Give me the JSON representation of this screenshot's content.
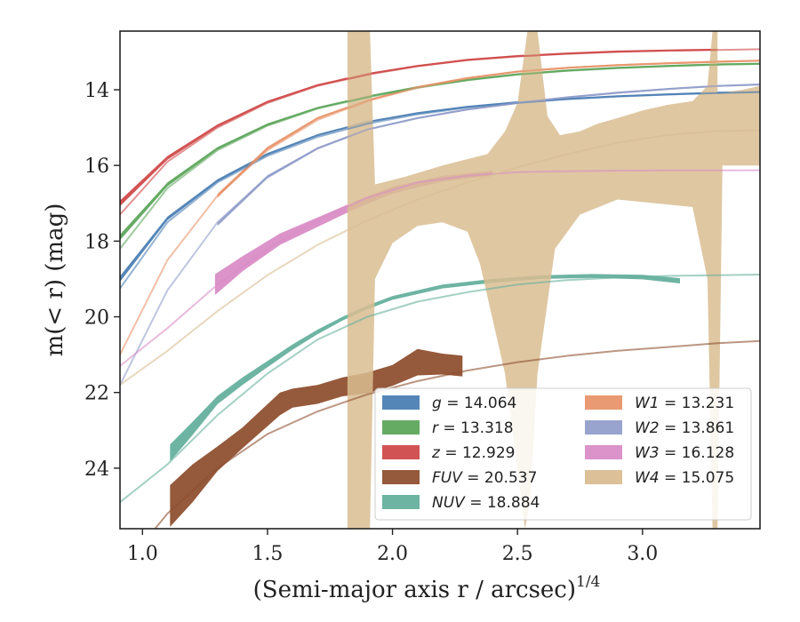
{
  "chart_data": {
    "type": "area",
    "xlabel": "(Semi-major axis r / arcsec)",
    "xlabel_sup": "1/4",
    "ylabel": "m(< r) (mag)",
    "xlim": [
      0.91,
      3.47
    ],
    "ylim": [
      25.6,
      12.45
    ],
    "y_inverted": true,
    "grid": false,
    "legend_placement": "lower-right",
    "xticks": [
      1.0,
      1.5,
      2.0,
      2.5,
      3.0
    ],
    "xtick_labels": [
      "1.0",
      "1.5",
      "2.0",
      "2.5",
      "3.0"
    ],
    "yticks": [
      14,
      16,
      18,
      20,
      22,
      24
    ],
    "ytick_labels": [
      "14",
      "16",
      "18",
      "20",
      "22",
      "24"
    ],
    "series": [
      {
        "key": "g",
        "name": "g",
        "value_label": "= 14.064",
        "color": "#4c7fb4",
        "model": {
          "x": [
            0.91,
            1.1,
            1.3,
            1.5,
            1.7,
            1.9,
            2.1,
            2.3,
            2.5,
            2.7,
            2.9,
            3.1,
            3.3,
            3.47
          ],
          "y": [
            19.25,
            17.5,
            16.45,
            15.75,
            15.25,
            14.9,
            14.65,
            14.47,
            14.35,
            14.25,
            14.18,
            14.13,
            14.09,
            14.064
          ]
        },
        "band": {
          "x": [
            0.91,
            1.1,
            1.3,
            1.5,
            1.7,
            1.9,
            2.1,
            2.3,
            2.5,
            2.7,
            2.9,
            3.1,
            3.3,
            3.47
          ],
          "y": [
            19.0,
            17.4,
            16.4,
            15.7,
            15.2,
            14.85,
            14.62,
            14.45,
            14.33,
            14.24,
            14.17,
            14.12,
            14.08,
            14.05
          ],
          "width": [
            0.15,
            0.1,
            0.07,
            0.06,
            0.05,
            0.05,
            0.05,
            0.05,
            0.05,
            0.05,
            0.05,
            0.05,
            0.05,
            0.05
          ]
        }
      },
      {
        "key": "r",
        "name": "r",
        "value_label": "= 13.318",
        "color": "#5ea65c",
        "model": {
          "x": [
            0.91,
            1.1,
            1.3,
            1.5,
            1.7,
            1.9,
            2.1,
            2.3,
            2.5,
            2.7,
            2.9,
            3.1,
            3.3,
            3.47
          ],
          "y": [
            18.2,
            16.6,
            15.6,
            14.95,
            14.5,
            14.2,
            13.95,
            13.75,
            13.6,
            13.5,
            13.43,
            13.38,
            13.34,
            13.318
          ]
        },
        "band": {
          "x": [
            0.91,
            1.1,
            1.3,
            1.5,
            1.7,
            1.9,
            2.1,
            2.3,
            2.5,
            2.7,
            2.9,
            3.1,
            3.3,
            3.47
          ],
          "y": [
            17.9,
            16.5,
            15.55,
            14.92,
            14.48,
            14.18,
            13.93,
            13.74,
            13.59,
            13.49,
            13.42,
            13.37,
            13.33,
            13.31
          ],
          "width": [
            0.15,
            0.1,
            0.07,
            0.06,
            0.05,
            0.05,
            0.05,
            0.05,
            0.05,
            0.05,
            0.05,
            0.05,
            0.05,
            0.05
          ]
        }
      },
      {
        "key": "z",
        "name": "z",
        "value_label": "= 12.929",
        "color": "#d04a4a",
        "model": {
          "x": [
            0.91,
            1.1,
            1.3,
            1.5,
            1.7,
            1.9,
            2.1,
            2.3,
            2.5,
            2.7,
            2.9,
            3.1,
            3.3,
            3.47
          ],
          "y": [
            17.3,
            15.9,
            15.0,
            14.35,
            13.9,
            13.6,
            13.38,
            13.22,
            13.12,
            13.05,
            13.0,
            12.97,
            12.95,
            12.929
          ]
        },
        "band": {
          "x": [
            0.91,
            1.1,
            1.3,
            1.5,
            1.7,
            1.9,
            2.1,
            2.3,
            2.5,
            2.7,
            2.9,
            3.1,
            3.3
          ],
          "y": [
            17.0,
            15.8,
            14.95,
            14.32,
            13.88,
            13.58,
            13.37,
            13.21,
            13.11,
            13.04,
            12.99,
            12.96,
            12.94
          ],
          "width": [
            0.15,
            0.1,
            0.07,
            0.06,
            0.05,
            0.05,
            0.05,
            0.05,
            0.05,
            0.05,
            0.05,
            0.05,
            0.05
          ]
        }
      },
      {
        "key": "FUV",
        "name": "FUV",
        "value_label": "= 20.537",
        "color": "#8f5030",
        "model": {
          "x": [
            1.05,
            1.1,
            1.3,
            1.5,
            1.7,
            1.9,
            2.1,
            2.3,
            2.5,
            2.7,
            2.9,
            3.1,
            3.3,
            3.47
          ],
          "y": [
            25.6,
            25.2,
            24.0,
            23.1,
            22.5,
            22.05,
            21.7,
            21.42,
            21.2,
            21.03,
            20.9,
            20.8,
            20.7,
            20.64
          ]
        },
        "band": {
          "x": [
            1.11,
            1.2,
            1.3,
            1.4,
            1.55,
            1.6,
            1.7,
            1.8,
            1.9,
            2.0,
            2.1,
            2.2,
            2.28
          ],
          "y": [
            25.0,
            24.4,
            23.75,
            23.2,
            22.3,
            22.15,
            22.05,
            21.85,
            21.75,
            21.55,
            21.2,
            21.25,
            21.3
          ],
          "width": [
            1.1,
            1.0,
            0.65,
            0.55,
            0.6,
            0.5,
            0.5,
            0.5,
            0.55,
            0.55,
            0.7,
            0.55,
            0.55
          ]
        }
      },
      {
        "key": "NUV",
        "name": "NUV",
        "value_label": "= 18.884",
        "color": "#66b09d",
        "model": {
          "x": [
            0.91,
            1.1,
            1.3,
            1.5,
            1.7,
            1.9,
            2.1,
            2.3,
            2.5,
            2.7,
            2.9,
            3.1,
            3.3,
            3.47
          ],
          "y": [
            24.9,
            23.9,
            22.6,
            21.5,
            20.6,
            20.0,
            19.6,
            19.35,
            19.15,
            19.03,
            18.96,
            18.92,
            18.9,
            18.884
          ]
        },
        "band": {
          "x": [
            1.11,
            1.2,
            1.3,
            1.4,
            1.5,
            1.6,
            1.7,
            1.8,
            1.9,
            2.0,
            2.2,
            2.4,
            2.6,
            2.8,
            3.0,
            3.15
          ],
          "y": [
            23.6,
            22.95,
            22.2,
            21.7,
            21.25,
            20.8,
            20.4,
            20.05,
            19.75,
            19.5,
            19.2,
            19.05,
            18.95,
            18.92,
            18.95,
            19.05
          ],
          "width": [
            0.45,
            0.35,
            0.22,
            0.2,
            0.16,
            0.14,
            0.12,
            0.1,
            0.1,
            0.1,
            0.1,
            0.1,
            0.1,
            0.1,
            0.12,
            0.14
          ]
        }
      },
      {
        "key": "W1",
        "name": "W1",
        "value_label": "= 13.231",
        "color": "#e8956a",
        "model": {
          "x": [
            0.91,
            1.1,
            1.3,
            1.5,
            1.7,
            1.9,
            2.1,
            2.3,
            2.5,
            2.7,
            2.9,
            3.1,
            3.3,
            3.47
          ],
          "y": [
            21.0,
            18.5,
            16.8,
            15.6,
            14.8,
            14.3,
            13.95,
            13.7,
            13.52,
            13.42,
            13.35,
            13.3,
            13.26,
            13.231
          ]
        },
        "band": {
          "x": [
            1.3,
            1.5,
            1.7,
            1.9,
            2.1,
            2.3,
            2.5,
            2.7,
            2.9,
            3.1,
            3.3,
            3.47
          ],
          "y": [
            16.8,
            15.55,
            14.75,
            14.28,
            13.93,
            13.69,
            13.52,
            13.42,
            13.35,
            13.3,
            13.26,
            13.23
          ],
          "width": [
            0.1,
            0.08,
            0.06,
            0.05,
            0.05,
            0.05,
            0.05,
            0.05,
            0.05,
            0.05,
            0.05,
            0.05
          ]
        }
      },
      {
        "key": "W2",
        "name": "W2",
        "value_label": "= 13.861",
        "color": "#939fcb",
        "model": {
          "x": [
            0.91,
            1.1,
            1.3,
            1.5,
            1.7,
            1.9,
            2.1,
            2.3,
            2.5,
            2.7,
            2.9,
            3.1,
            3.3,
            3.47
          ],
          "y": [
            21.8,
            19.3,
            17.5,
            16.3,
            15.55,
            15.05,
            14.75,
            14.52,
            14.35,
            14.2,
            14.08,
            13.98,
            13.9,
            13.861
          ]
        },
        "band": {
          "x": [
            1.3,
            1.5,
            1.7,
            1.9,
            2.1,
            2.3,
            2.5,
            2.7,
            2.9,
            3.1,
            3.3,
            3.47
          ],
          "y": [
            17.55,
            16.3,
            15.55,
            15.05,
            14.75,
            14.52,
            14.35,
            14.2,
            14.08,
            13.98,
            13.9,
            13.86
          ],
          "width": [
            0.1,
            0.08,
            0.06,
            0.05,
            0.05,
            0.05,
            0.05,
            0.05,
            0.05,
            0.05,
            0.05,
            0.05
          ]
        }
      },
      {
        "key": "W3",
        "name": "W3",
        "value_label": "= 16.128",
        "color": "#d98dc6",
        "model": {
          "x": [
            0.91,
            1.1,
            1.3,
            1.5,
            1.7,
            1.9,
            2.1,
            2.3,
            2.5,
            2.7,
            2.9,
            3.1,
            3.3,
            3.47
          ],
          "y": [
            21.3,
            20.3,
            19.15,
            18.2,
            17.45,
            16.85,
            16.45,
            16.27,
            16.18,
            16.15,
            16.14,
            16.13,
            16.13,
            16.128
          ]
        },
        "band": {
          "x": [
            1.29,
            1.4,
            1.55,
            1.7,
            1.85,
            2.0,
            2.2,
            2.4
          ],
          "y": [
            19.15,
            18.6,
            17.95,
            17.5,
            17.05,
            16.65,
            16.35,
            16.2
          ],
          "width": [
            0.55,
            0.4,
            0.3,
            0.25,
            0.2,
            0.18,
            0.15,
            0.12
          ]
        }
      },
      {
        "key": "W4",
        "name": "W4",
        "value_label": "= 15.075",
        "color": "#d9bd92",
        "model": {
          "x": [
            0.91,
            1.1,
            1.3,
            1.5,
            1.7,
            1.9,
            2.1,
            2.3,
            2.5,
            2.7,
            2.9,
            3.1,
            3.3,
            3.47
          ],
          "y": [
            21.8,
            20.9,
            19.85,
            18.9,
            18.1,
            17.45,
            16.9,
            16.45,
            16.05,
            15.7,
            15.4,
            15.2,
            15.09,
            15.075
          ]
        },
        "band_poly": {
          "upper": [
            [
              1.82,
              12.45
            ],
            [
              1.91,
              12.45
            ],
            [
              1.93,
              16.5
            ],
            [
              2.05,
              16.3
            ],
            [
              2.2,
              16.0
            ],
            [
              2.38,
              15.7
            ],
            [
              2.45,
              15.1
            ],
            [
              2.5,
              14.35
            ],
            [
              2.54,
              12.45
            ],
            [
              2.58,
              12.45
            ],
            [
              2.62,
              14.7
            ],
            [
              2.67,
              15.2
            ],
            [
              2.75,
              15.1
            ],
            [
              2.82,
              14.9
            ],
            [
              2.9,
              14.75
            ],
            [
              3.0,
              14.55
            ],
            [
              3.1,
              14.4
            ],
            [
              3.2,
              14.3
            ],
            [
              3.26,
              13.9
            ],
            [
              3.28,
              12.45
            ],
            [
              3.3,
              12.45
            ],
            [
              3.3,
              14.1
            ],
            [
              3.4,
              14.0
            ],
            [
              3.47,
              13.9
            ]
          ],
          "lower": [
            [
              3.47,
              16.0
            ],
            [
              3.4,
              16.0
            ],
            [
              3.32,
              16.0
            ],
            [
              3.3,
              25.6
            ],
            [
              3.28,
              25.6
            ],
            [
              3.26,
              19.0
            ],
            [
              3.2,
              17.1
            ],
            [
              3.05,
              17.0
            ],
            [
              2.9,
              16.9
            ],
            [
              2.75,
              17.3
            ],
            [
              2.65,
              18.2
            ],
            [
              2.58,
              21.5
            ],
            [
              2.55,
              24.9
            ],
            [
              2.53,
              25.6
            ],
            [
              2.5,
              24.0
            ],
            [
              2.45,
              21.5
            ],
            [
              2.35,
              18.6
            ],
            [
              2.3,
              17.75
            ],
            [
              2.2,
              17.5
            ],
            [
              2.1,
              17.6
            ],
            [
              2.0,
              18.05
            ],
            [
              1.93,
              19.0
            ],
            [
              1.91,
              25.6
            ],
            [
              1.82,
              25.6
            ]
          ]
        }
      }
    ]
  }
}
